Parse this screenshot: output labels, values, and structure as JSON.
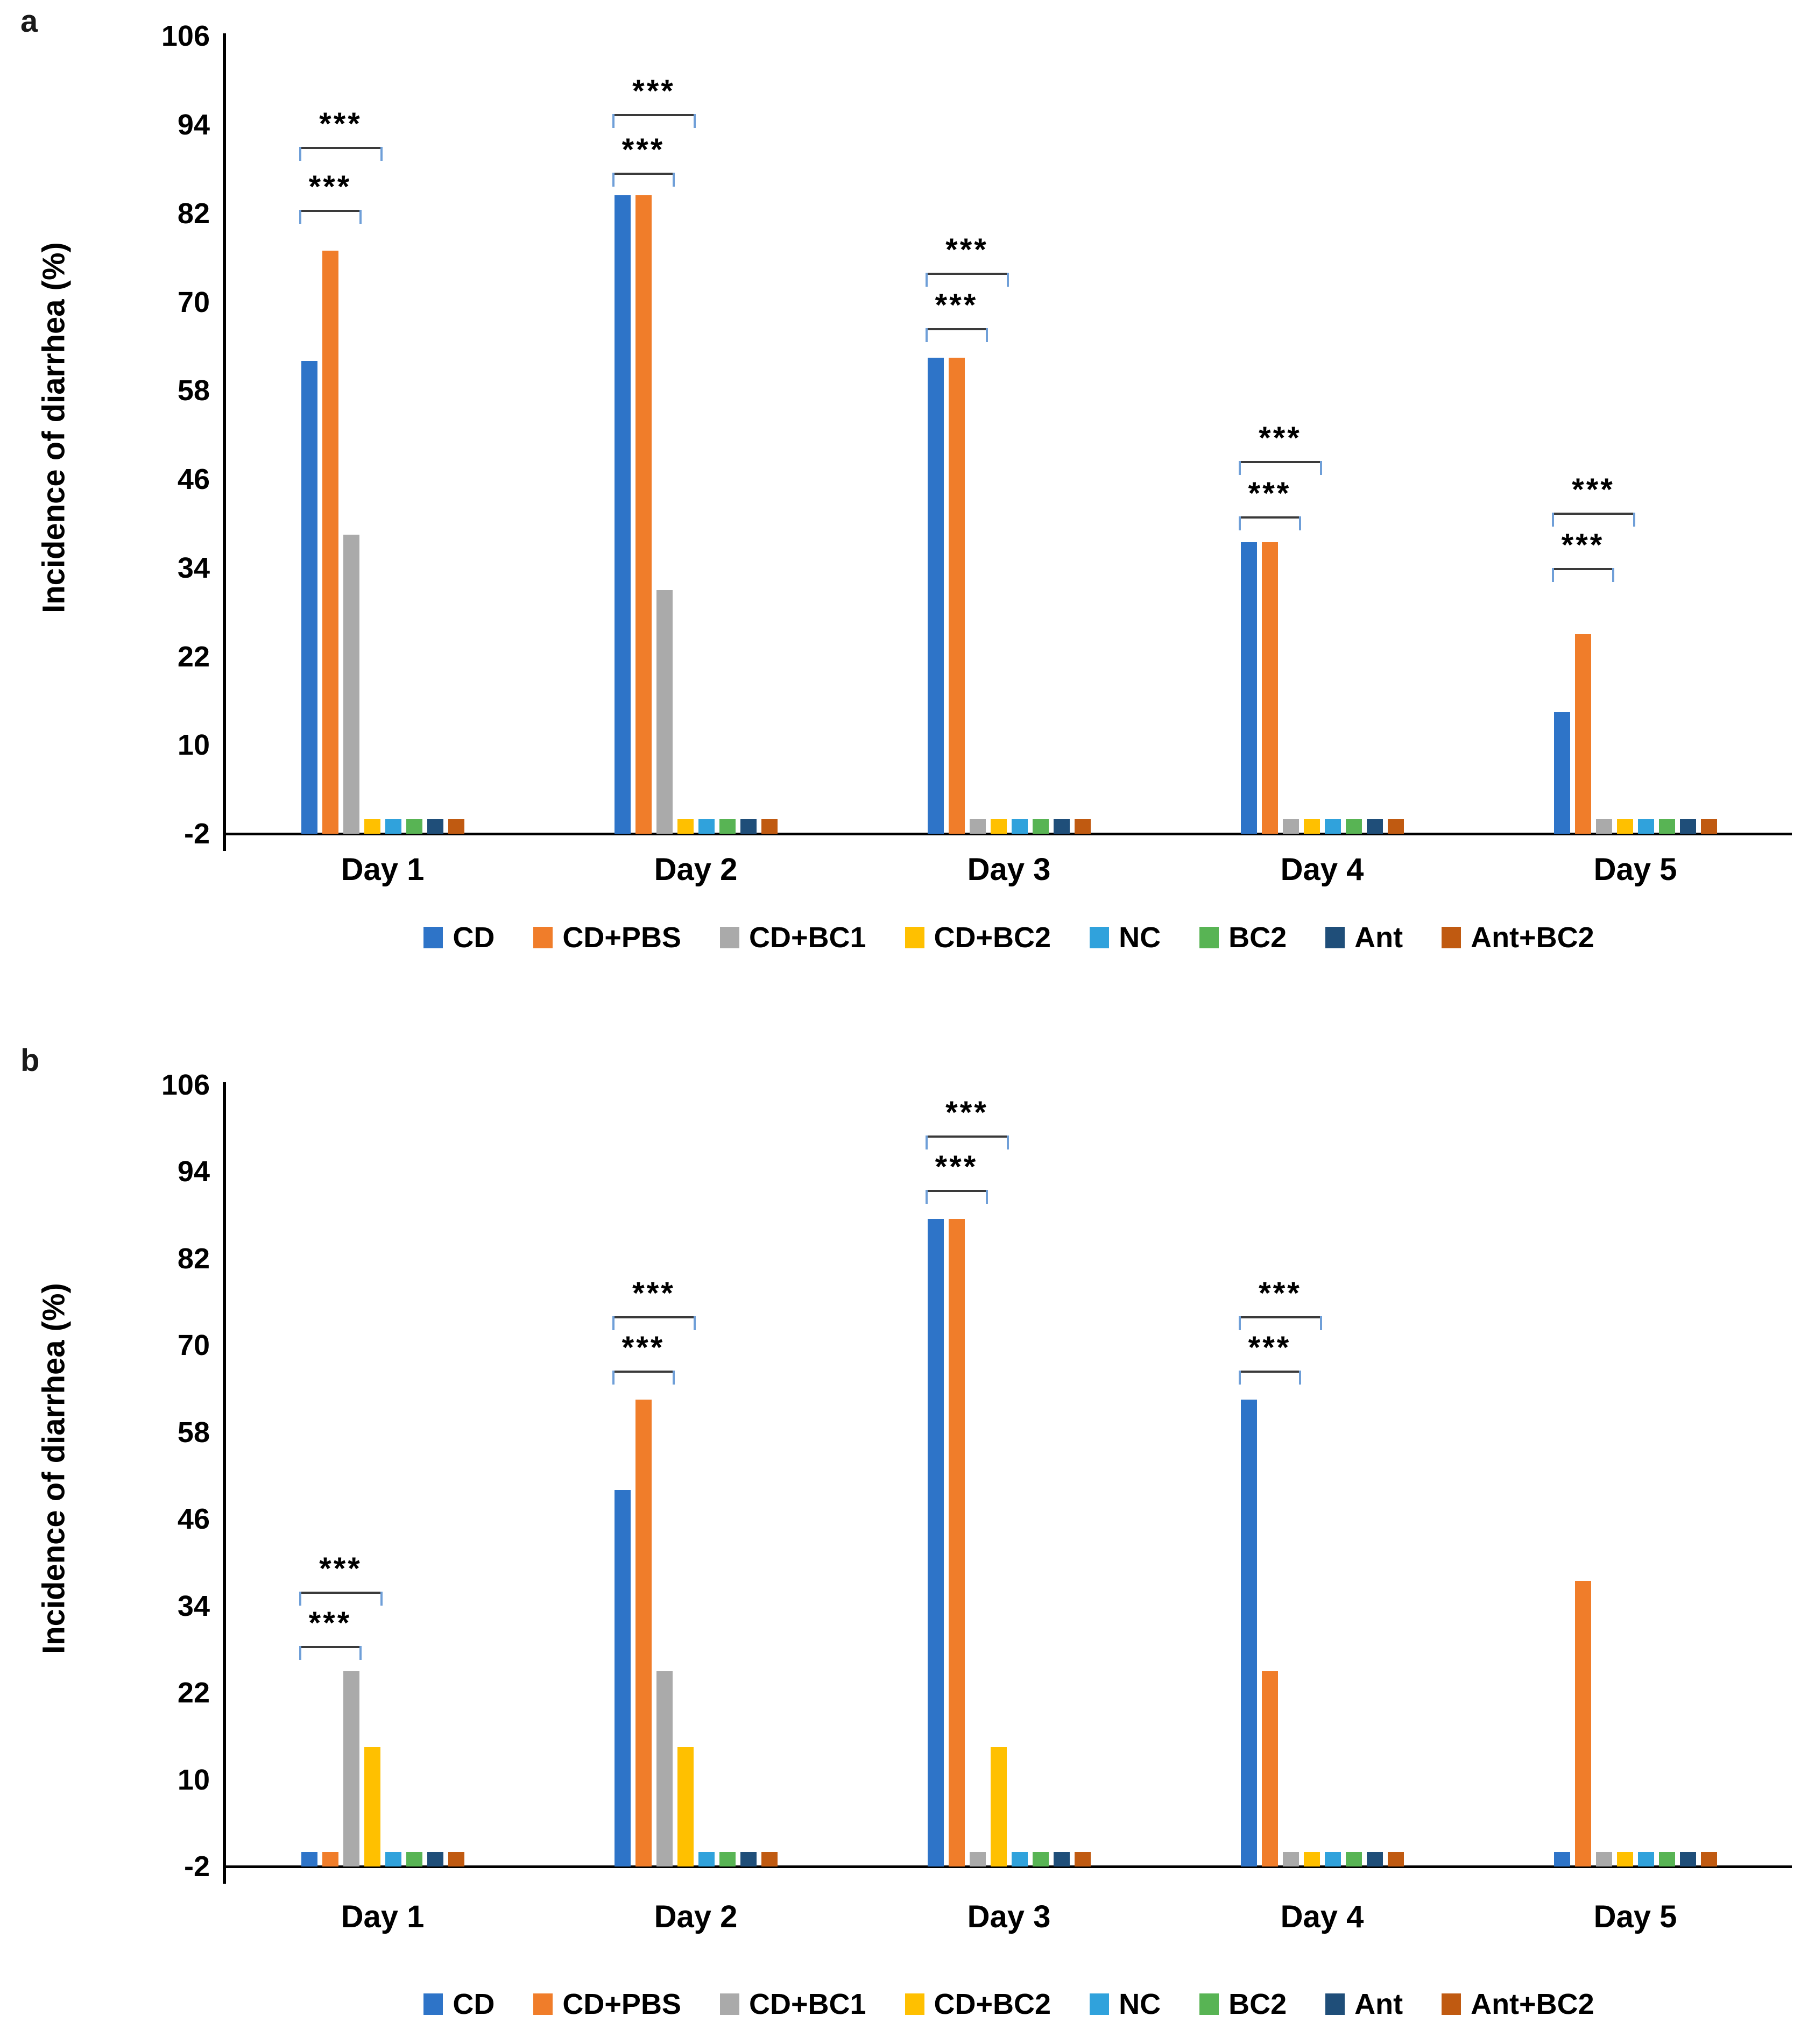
{
  "figure_title": "",
  "chart_data": [
    {
      "type": "bar",
      "panel_label": "a",
      "title": "",
      "xlabel": "",
      "ylabel": "Incidence of diarrhea (%)",
      "categories": [
        "Day 1",
        "Day 2",
        "Day 3",
        "Day 4",
        "Day 5"
      ],
      "series": [
        {
          "name": "CD",
          "color": "#2E74C8",
          "values": [
            62,
            84.5,
            62.5,
            37.5,
            14.5
          ]
        },
        {
          "name": "CD+PBS",
          "color": "#F07D2A",
          "values": [
            77,
            84.5,
            62.5,
            37.5,
            25
          ]
        },
        {
          "name": "CD+BC1",
          "color": "#AAAAAA",
          "values": [
            38.5,
            31,
            0,
            0,
            0
          ]
        },
        {
          "name": "CD+BC2",
          "color": "#FFC000",
          "values": [
            0,
            0,
            0,
            0,
            0
          ]
        },
        {
          "name": "NC",
          "color": "#30A2DC",
          "values": [
            0,
            0,
            0,
            0,
            0
          ]
        },
        {
          "name": "BC2",
          "color": "#58B454",
          "values": [
            0,
            0,
            0,
            0,
            0
          ]
        },
        {
          "name": "Ant",
          "color": "#1F4E79",
          "values": [
            0,
            0,
            0,
            0,
            0
          ]
        },
        {
          "name": "Ant+BC2",
          "color": "#C05A11",
          "values": [
            0,
            0,
            0,
            0,
            0
          ]
        }
      ],
      "yticks": [
        106,
        94,
        82,
        70,
        58,
        46,
        34,
        22,
        10,
        -2
      ],
      "ylim": [
        -2,
        108
      ],
      "bar_base": -2,
      "grid": false,
      "legend_position": "bottom",
      "annotations": [
        {
          "category": "Day 1",
          "brackets": [
            {
              "from": 0,
              "to": 2,
              "y": 82.5,
              "label": "***"
            },
            {
              "from": 0,
              "to": 3,
              "y": 91,
              "label": "***"
            }
          ]
        },
        {
          "category": "Day 2",
          "brackets": [
            {
              "from": 0,
              "to": 2,
              "y": 87.5,
              "label": "***"
            },
            {
              "from": 0,
              "to": 3,
              "y": 95.5,
              "label": "***"
            }
          ]
        },
        {
          "category": "Day 3",
          "brackets": [
            {
              "from": 0,
              "to": 2,
              "y": 66.5,
              "label": "***"
            },
            {
              "from": 0,
              "to": 3,
              "y": 74,
              "label": "***"
            }
          ]
        },
        {
          "category": "Day 4",
          "brackets": [
            {
              "from": 0,
              "to": 2,
              "y": 41,
              "label": "***"
            },
            {
              "from": 0,
              "to": 3,
              "y": 48.5,
              "label": "***"
            }
          ]
        },
        {
          "category": "Day 5",
          "brackets": [
            {
              "from": 0,
              "to": 2,
              "y": 34,
              "label": "***"
            },
            {
              "from": 0,
              "to": 3,
              "y": 41.5,
              "label": "***"
            }
          ]
        }
      ]
    },
    {
      "type": "bar",
      "panel_label": "b",
      "title": "",
      "xlabel": "",
      "ylabel": "Incidence of diarrhea (%)",
      "categories": [
        "Day 1",
        "Day 2",
        "Day 3",
        "Day 4",
        "Day 5"
      ],
      "series": [
        {
          "name": "CD",
          "color": "#2E74C8",
          "values": [
            0,
            50,
            87.5,
            62.5,
            0
          ]
        },
        {
          "name": "CD+PBS",
          "color": "#F07D2A",
          "values": [
            0,
            62.5,
            87.5,
            25,
            37.5
          ]
        },
        {
          "name": "CD+BC1",
          "color": "#AAAAAA",
          "values": [
            25,
            25,
            0,
            0,
            0
          ]
        },
        {
          "name": "CD+BC2",
          "color": "#FFC000",
          "values": [
            14.5,
            14.5,
            14.5,
            0,
            0
          ]
        },
        {
          "name": "NC",
          "color": "#30A2DC",
          "values": [
            0,
            0,
            0,
            0,
            0
          ]
        },
        {
          "name": "BC2",
          "color": "#58B454",
          "values": [
            0,
            0,
            0,
            0,
            0
          ]
        },
        {
          "name": "Ant",
          "color": "#1F4E79",
          "values": [
            0,
            0,
            0,
            0,
            0
          ]
        },
        {
          "name": "Ant+BC2",
          "color": "#C05A11",
          "values": [
            0,
            0,
            0,
            0,
            0
          ]
        }
      ],
      "yticks": [
        106,
        94,
        82,
        70,
        58,
        46,
        34,
        22,
        10,
        -2
      ],
      "ylim": [
        -2,
        108
      ],
      "bar_base": -2,
      "grid": false,
      "legend_position": "bottom",
      "annotations": [
        {
          "category": "Day 1",
          "brackets": [
            {
              "from": 0,
              "to": 2,
              "y": 28.5,
              "label": "***"
            },
            {
              "from": 0,
              "to": 3,
              "y": 36,
              "label": "***"
            }
          ]
        },
        {
          "category": "Day 2",
          "brackets": [
            {
              "from": 0,
              "to": 2,
              "y": 66.5,
              "label": "***"
            },
            {
              "from": 0,
              "to": 3,
              "y": 74,
              "label": "***"
            }
          ]
        },
        {
          "category": "Day 3",
          "brackets": [
            {
              "from": 0,
              "to": 2,
              "y": 91.5,
              "label": "***"
            },
            {
              "from": 0,
              "to": 3,
              "y": 99,
              "label": "***"
            }
          ]
        },
        {
          "category": "Day 4",
          "brackets": [
            {
              "from": 0,
              "to": 2,
              "y": 66.5,
              "label": "***"
            },
            {
              "from": 0,
              "to": 3,
              "y": 74,
              "label": "***"
            }
          ]
        },
        {
          "category": "Day 5",
          "brackets": []
        }
      ]
    }
  ]
}
